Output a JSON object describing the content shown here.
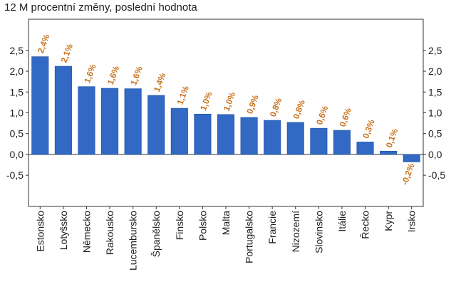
{
  "chart_data": {
    "type": "bar",
    "title": "12 M procentní změny, poslední hodnota",
    "categories": [
      "Estonsko",
      "Lotyšsko",
      "Německo",
      "Rakousko",
      "Lucembursko",
      "Španělsko",
      "Finsko",
      "Polsko",
      "Malta",
      "Portugalsko",
      "Francie",
      "Nizozemí",
      "Slovinsko",
      "Itálie",
      "Řecko",
      "Kypr",
      "Irsko"
    ],
    "values": [
      2.35,
      2.12,
      1.63,
      1.59,
      1.58,
      1.42,
      1.11,
      0.97,
      0.96,
      0.89,
      0.82,
      0.77,
      0.63,
      0.58,
      0.3,
      0.08,
      -0.18
    ],
    "data_labels": [
      "2,4%",
      "2,1%",
      "1,6%",
      "1,6%",
      "1,6%",
      "1,4%",
      "1,1%",
      "1,0%",
      "1,0%",
      "0,9%",
      "0,8%",
      "0,8%",
      "0,6%",
      "0,6%",
      "0,3%",
      "0,1%",
      "-0,2%"
    ],
    "yticks": [
      -0.5,
      0,
      0.5,
      1,
      1.5,
      2,
      2.5
    ],
    "ytick_labels": [
      "-0,5",
      "0,0",
      "0,5",
      "1,0",
      "1,5",
      "2,0",
      "2,5"
    ],
    "ylim": [
      -1.25,
      3.25
    ],
    "xlabel": "",
    "ylabel": "",
    "grid": false,
    "legend": "none",
    "colors": {
      "bar": "#3169c4",
      "bar_edge": "#1e4e9c",
      "label": "#c9731f",
      "axis": "#333333",
      "tick_text": "#1f1f1f"
    }
  }
}
